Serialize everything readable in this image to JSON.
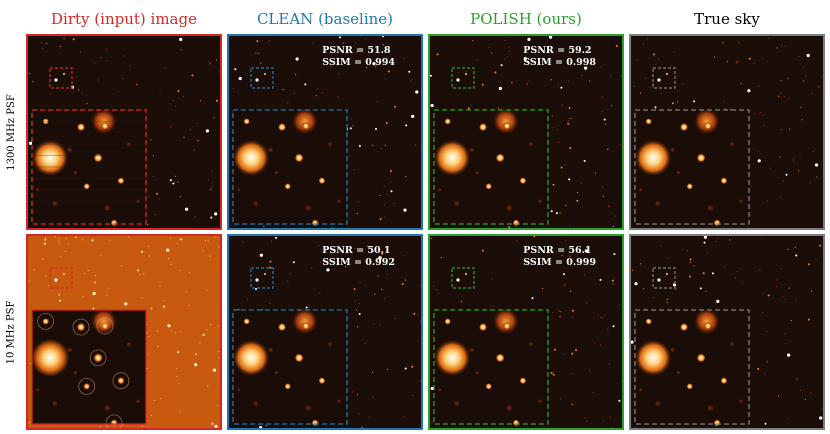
{
  "columns": [
    {
      "title": "Dirty (input) image",
      "color": "#d62728"
    },
    {
      "title": "CLEAN (baseline)",
      "color": "#1f77b4"
    },
    {
      "title": "POLISH (ours)",
      "color": "#2ca02c"
    },
    {
      "title": "True sky",
      "color": "#000000"
    }
  ],
  "rows": [
    {
      "label": "1300 MHz PSF"
    },
    {
      "label": "10 MHz PSF"
    }
  ],
  "border_colors": [
    "#d62728",
    "#1f77b4",
    "#2ca02c",
    "#7f7f7f"
  ],
  "metrics": {
    "r0c1": {
      "psnr": "PSNR = 51.8",
      "ssim": "SSIM = 0.994"
    },
    "r0c2": {
      "psnr": "PSNR = 59.2",
      "ssim": "SSIM = 0.998"
    },
    "r1c1": {
      "psnr": "PSNR = 50.1",
      "ssim": "SSIM = 0.992"
    },
    "r1c2": {
      "psnr": "PSNR = 56.1",
      "ssim": "SSIM = 0.999"
    }
  }
}
